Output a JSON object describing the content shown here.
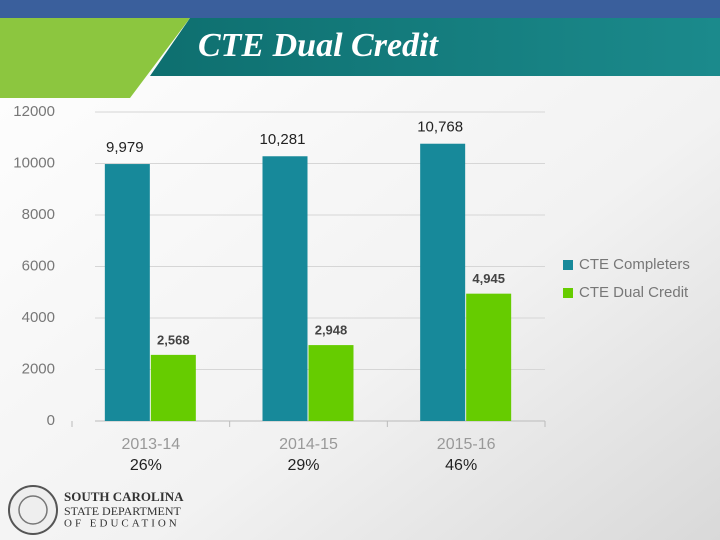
{
  "chart_data": {
    "type": "bar",
    "title": "CTE Dual Credit",
    "categories": [
      "2013-14",
      "2014-15",
      "2015-16"
    ],
    "series": [
      {
        "name": "CTE Completers",
        "color": "#17899a",
        "values": [
          9979,
          10281,
          10768
        ],
        "value_labels": [
          "9,979",
          "10,281",
          "10,768"
        ]
      },
      {
        "name": "CTE Dual Credit",
        "color": "#66cc00",
        "values": [
          2568,
          2948,
          4945
        ],
        "value_labels": [
          "2,568",
          "2,948",
          "4,945"
        ]
      }
    ],
    "annotations": [
      "26%",
      "29%",
      "46%"
    ],
    "ylim": [
      0,
      12000
    ],
    "yticks": [
      0,
      2000,
      4000,
      6000,
      8000,
      10000,
      12000
    ],
    "grid": true,
    "legend": "right"
  },
  "logo": {
    "lines": [
      "SOUTH CAROLINA",
      "STATE DEPARTMENT",
      "OF EDUCATION"
    ]
  }
}
